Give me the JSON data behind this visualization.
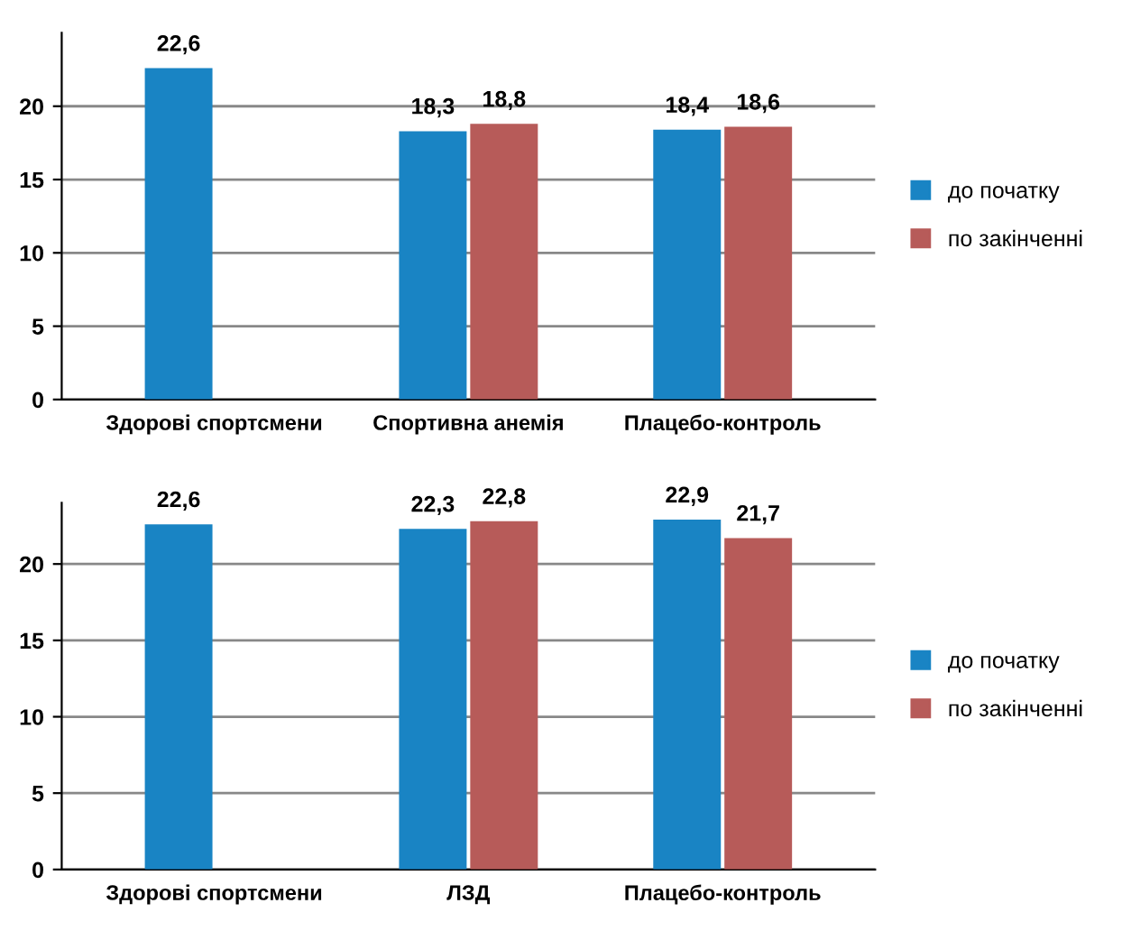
{
  "chart_data": [
    {
      "type": "bar",
      "categories": [
        "Здорові спортсмени",
        "Спортивна анемія",
        "Плацебо-контроль"
      ],
      "series": [
        {
          "name": "до початку",
          "color": "#1984c4",
          "values": [
            22.6,
            18.3,
            18.4
          ],
          "value_labels": [
            "22,6",
            "18,3",
            "18,4"
          ]
        },
        {
          "name": "по закінченні",
          "color": "#b75b59",
          "values": [
            null,
            18.8,
            18.6
          ],
          "value_labels": [
            null,
            "18,8",
            "18,6"
          ]
        }
      ],
      "ylim": [
        0,
        25
      ],
      "yticks": [
        0,
        5,
        10,
        15,
        20
      ],
      "grid": "y",
      "legend": "right"
    },
    {
      "type": "bar",
      "categories": [
        "Здорові спортсмени",
        "ЛЗД",
        "Плацебо-контроль"
      ],
      "series": [
        {
          "name": "до початку",
          "color": "#1984c4",
          "values": [
            22.6,
            22.3,
            22.9
          ],
          "value_labels": [
            "22,6",
            "22,3",
            "22,9"
          ]
        },
        {
          "name": "по закінченні",
          "color": "#b75b59",
          "values": [
            null,
            22.8,
            21.7
          ],
          "value_labels": [
            null,
            "22,8",
            "21,7"
          ]
        }
      ],
      "ylim": [
        0,
        24
      ],
      "yticks": [
        0,
        5,
        10,
        15,
        20
      ],
      "grid": "y",
      "legend": "right"
    }
  ]
}
